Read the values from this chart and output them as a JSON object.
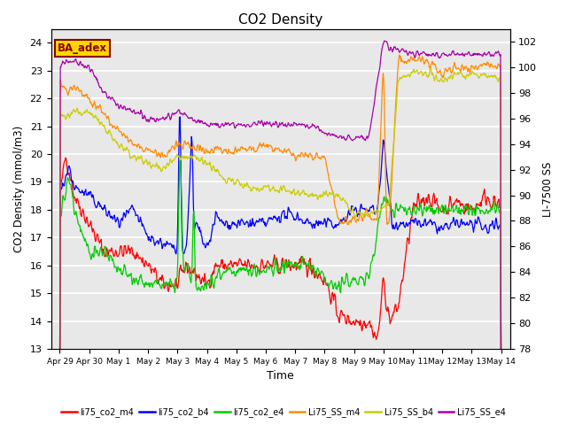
{
  "title": "CO2 Density",
  "xlabel": "Time",
  "ylabel_left": "CO2 Density (mmol/m3)",
  "ylabel_right": "LI-7500 SS",
  "annotation": "BA_adex",
  "annotation_color": "#8B0000",
  "annotation_bg": "#FFD700",
  "plot_bg": "#E8E8E8",
  "ylim_left": [
    13.0,
    24.5
  ],
  "ylim_right": [
    78,
    103
  ],
  "yticks_left": [
    13.0,
    14.0,
    15.0,
    16.0,
    17.0,
    18.0,
    19.0,
    20.0,
    21.0,
    22.0,
    23.0,
    24.0
  ],
  "yticks_right": [
    78,
    80,
    82,
    84,
    86,
    88,
    90,
    92,
    94,
    96,
    98,
    100,
    102
  ],
  "xtick_labels": [
    "Apr 29",
    "Apr 30",
    "May 1",
    "May 2",
    "May 3",
    "May 4",
    "May 5",
    "May 6",
    "May 7",
    "May 8",
    "May 9",
    "May 10",
    "May 11",
    "May 12",
    "May 13",
    "May 14"
  ],
  "series_colors": {
    "li75_co2_m4": "#FF0000",
    "li75_co2_b4": "#0000FF",
    "li75_co2_e4": "#00CC00",
    "Li75_SS_m4": "#FF8C00",
    "Li75_SS_b4": "#CCCC00",
    "Li75_SS_e4": "#AA00AA"
  },
  "legend_labels": [
    "li75_co2_m4",
    "li75_co2_b4",
    "li75_co2_e4",
    "Li75_SS_m4",
    "Li75_SS_b4",
    "Li75_SS_e4"
  ]
}
